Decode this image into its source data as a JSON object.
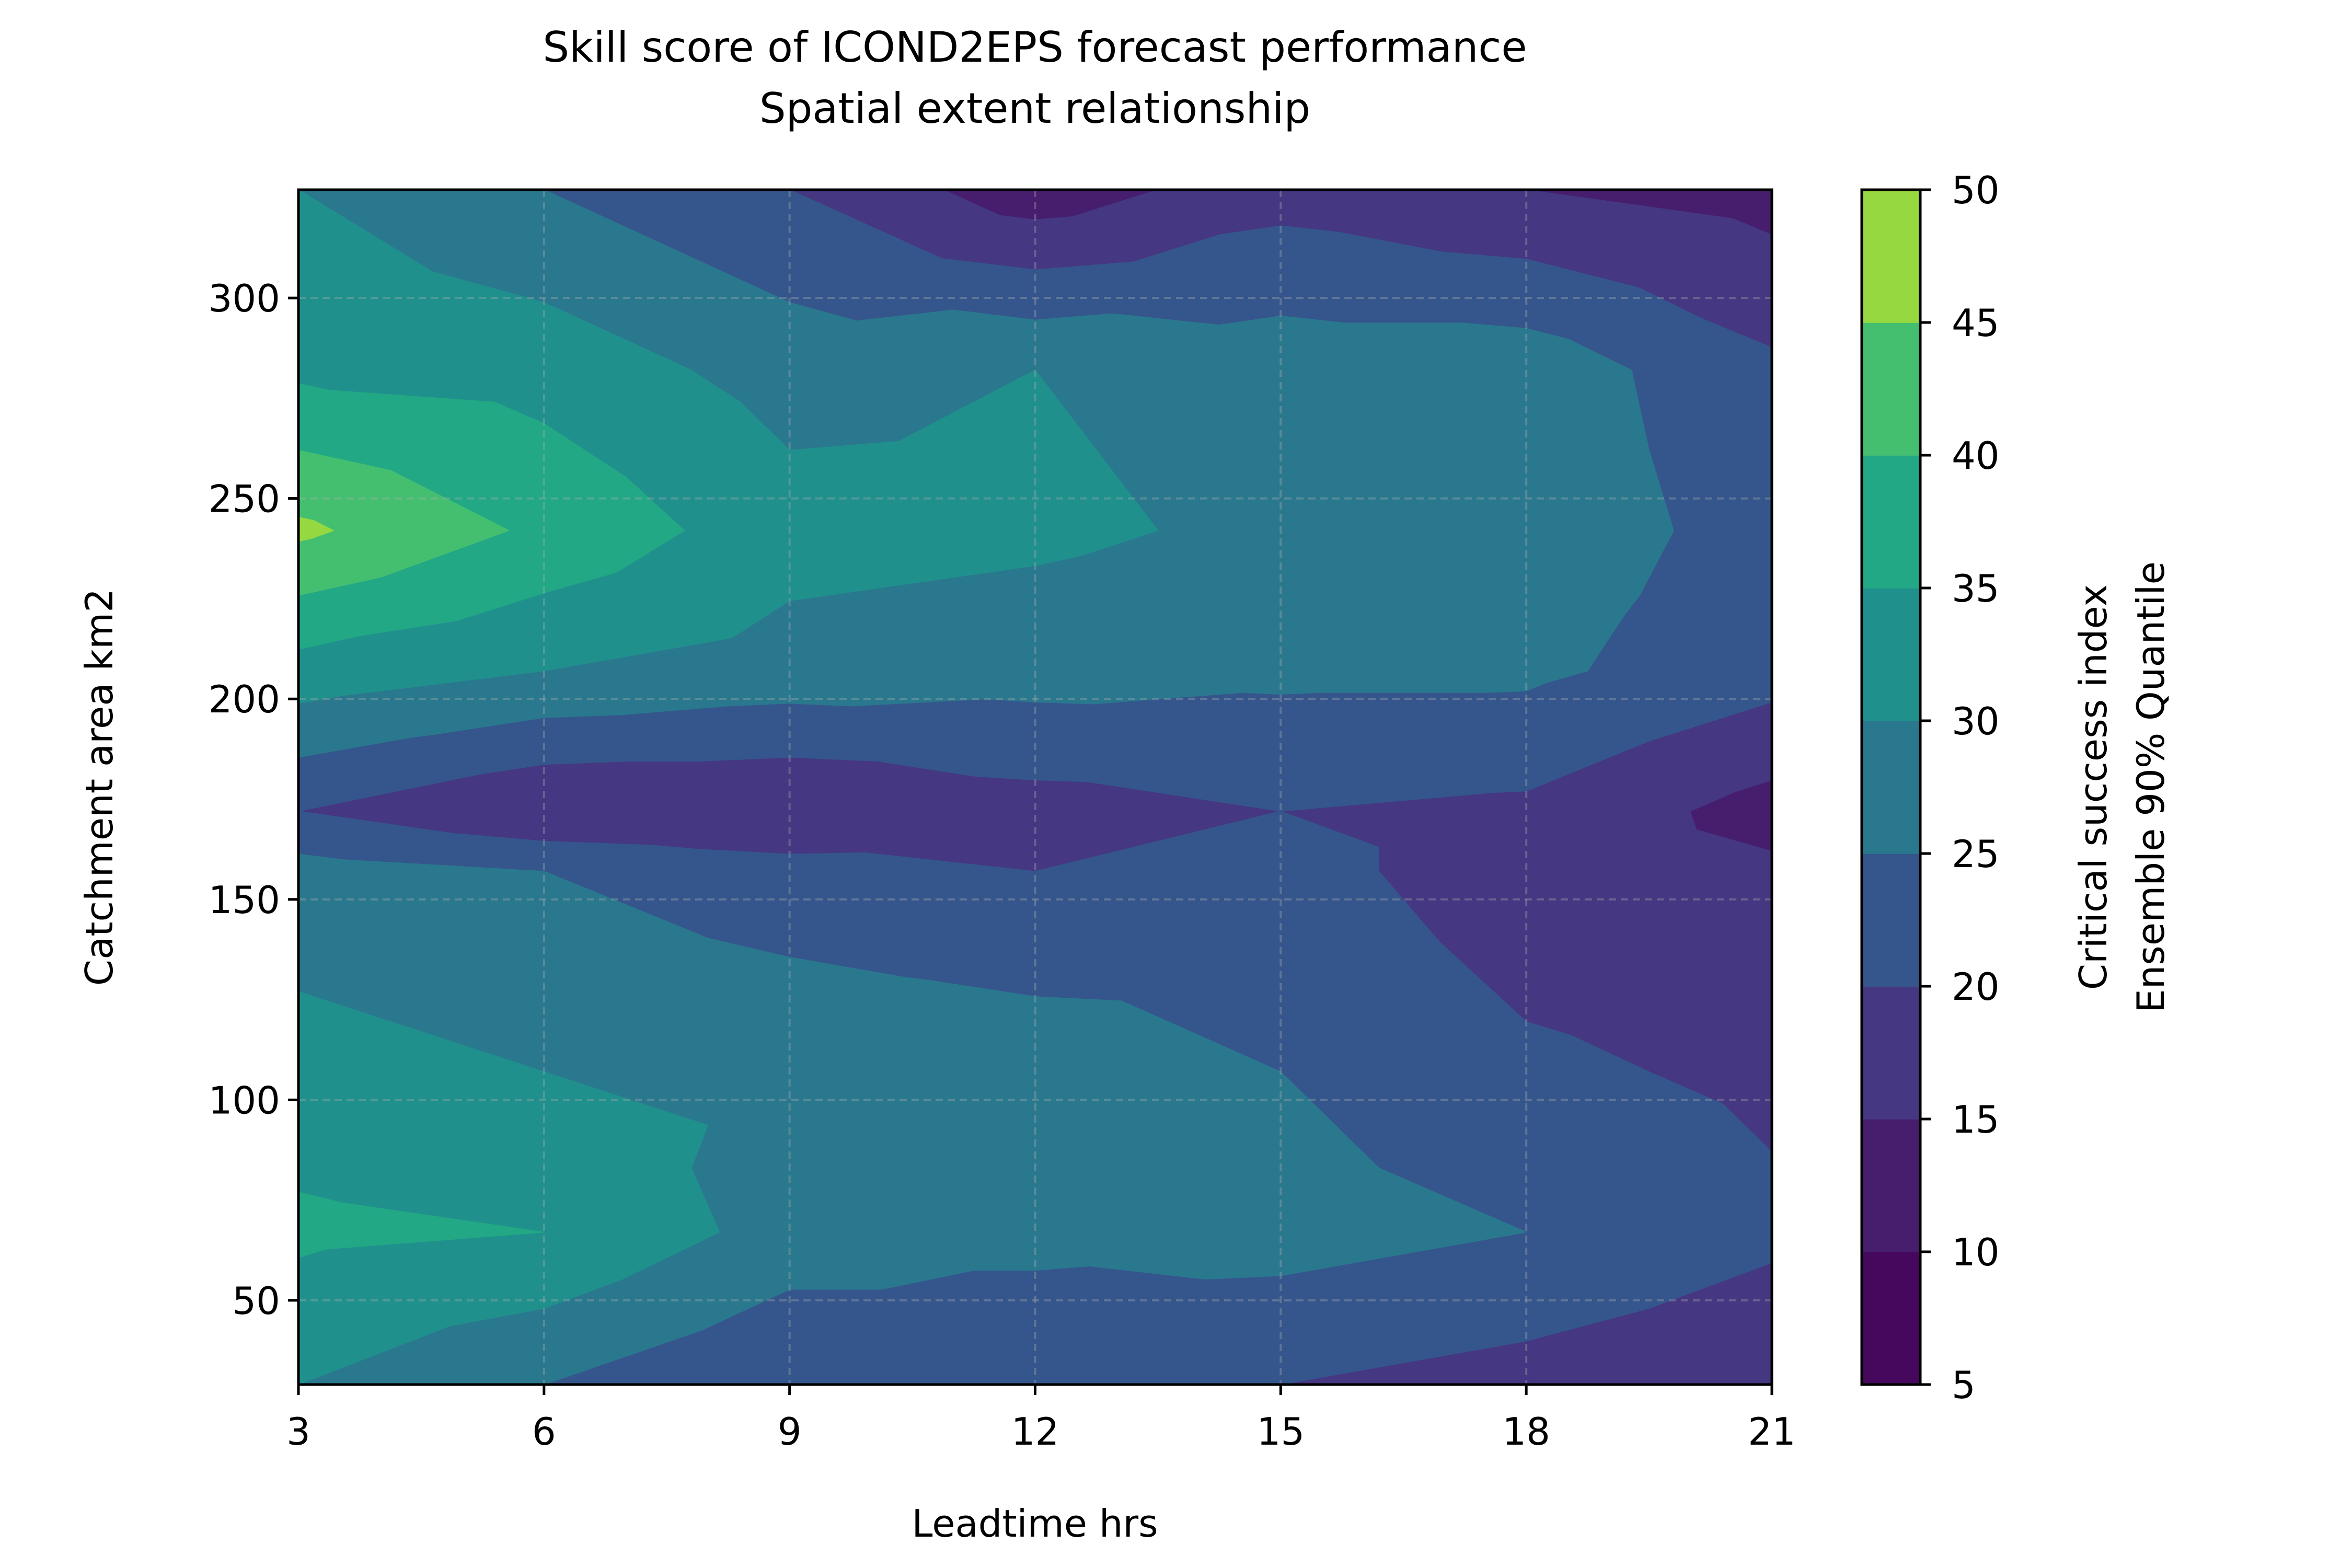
{
  "chart_data": {
    "type": "heatmap",
    "subtype": "filled-contour",
    "title": [
      "Skill score of ICOND2EPS forecast performance",
      "Spatial extent relationship"
    ],
    "xlabel": "Leadtime hrs",
    "ylabel": "Catchment area km2",
    "x": [
      3,
      6,
      9,
      12,
      15,
      18,
      21
    ],
    "y": [
      29,
      67,
      107,
      157,
      172,
      207,
      242,
      282,
      327
    ],
    "z": [
      [
        30,
        25,
        20,
        22,
        20,
        18,
        16
      ],
      [
        36,
        35,
        28,
        26,
        27,
        25,
        21
      ],
      [
        32,
        30,
        29,
        28,
        25,
        21,
        19
      ],
      [
        27,
        25,
        22,
        20,
        22,
        17,
        16
      ],
      [
        20,
        15,
        15,
        18,
        20,
        19,
        13
      ],
      [
        33,
        30,
        28,
        27,
        26,
        26,
        22
      ],
      [
        46,
        39,
        32,
        31,
        29,
        28,
        23
      ],
      [
        34,
        33,
        28,
        30,
        28,
        28,
        21
      ],
      [
        30,
        25,
        20,
        12,
        18,
        15,
        13
      ]
    ],
    "xticks": [
      "3",
      "6",
      "9",
      "12",
      "15",
      "18",
      "21"
    ],
    "yticks": [
      "50",
      "100",
      "150",
      "200",
      "250",
      "300"
    ],
    "xlim": [
      3,
      21
    ],
    "ylim": [
      29,
      327
    ],
    "levels": [
      5,
      10,
      15,
      20,
      25,
      30,
      35,
      40,
      45,
      50
    ],
    "level_colors": [
      "#46085c",
      "#471e6e",
      "#453781",
      "#35568c",
      "#2a788e",
      "#20908d",
      "#22a884",
      "#44bf70",
      "#95d840",
      "#dde318"
    ],
    "colorbar": {
      "label": [
        "Critical success index",
        "Ensemble 90% Quantile"
      ],
      "ticks": [
        "5",
        "10",
        "15",
        "20",
        "25",
        "30",
        "35",
        "40",
        "45",
        "50"
      ]
    },
    "grid": true,
    "colormap": "viridis"
  }
}
